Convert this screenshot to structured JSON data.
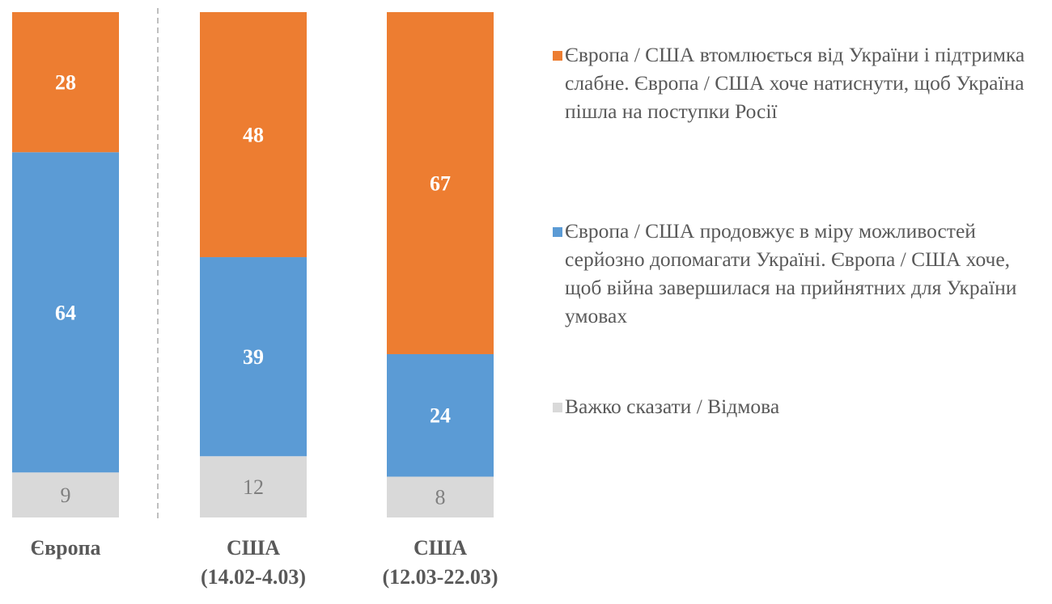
{
  "chart_data": {
    "type": "stacked-bar",
    "categories": [
      "Європа",
      "США (14.02-4.03)",
      "США (12.03-22.03)"
    ],
    "category_lines": [
      [
        "Європа"
      ],
      [
        "США",
        "(14.02-4.03)"
      ],
      [
        "США",
        "(12.03-22.03)"
      ]
    ],
    "series": [
      {
        "name": "Важко сказати / Відмова",
        "values": [
          9,
          12,
          8
        ],
        "color": "#D9D9D9"
      },
      {
        "name": "Європа / США продовжує в міру можливостей серйозно допомагати Україні. Європа / США хоче, щоб війна завершилася на прийнятних для України умовах",
        "values": [
          64,
          39,
          24
        ],
        "color": "#5B9BD5"
      },
      {
        "name": "Європа / США втомлюється від України і підтримка слабне. Європа / США хоче натиснути, щоб Україна пішла на поступки Росії",
        "values": [
          28,
          48,
          67
        ],
        "color": "#ED7D31"
      }
    ],
    "stacking": "100%",
    "separator_after_category": 0,
    "legend_position": "right",
    "grid": false
  }
}
